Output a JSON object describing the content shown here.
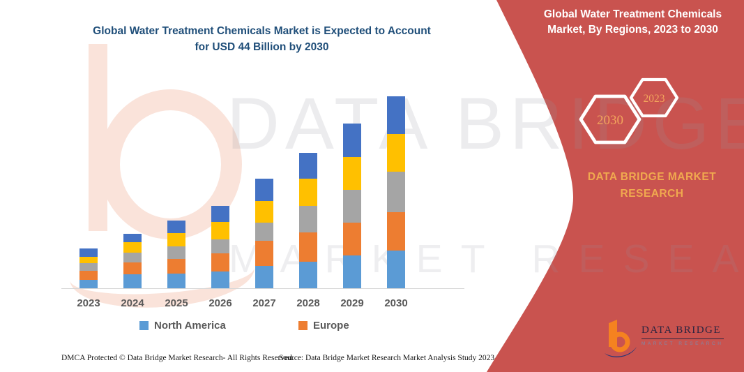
{
  "infographic": {
    "left_title": "Global Water Treatment Chemicals Market is Expected to Account for USD 44 Billion by 2030",
    "panel_title": "Global Water Treatment Chemicals Market, By Regions, 2023 to 2030",
    "hexagons": {
      "back_label": "2030",
      "front_label": "2023"
    },
    "brand_text": "DATA BRIDGE MARKET RESEARCH",
    "watermark_line1": "DATA BRIDGE",
    "watermark_line2": "MARKET RESEARCH",
    "logo": {
      "name": "DATA BRIDGE",
      "subtitle": "MARKET RESEARCH"
    },
    "footer": {
      "left": "DMCA Protected © Data Bridge Market Research-  All Rights Reserved.",
      "source": "Source: Data Bridge Market Research  Market Analysis Study 2023"
    },
    "colors": {
      "panel_red": "#C9534F",
      "gold": "#F0A94F",
      "title_navy": "#1F4E79",
      "axis_text": "#595959"
    }
  },
  "chart_data": {
    "type": "bar",
    "subtype": "stacked",
    "title": "Global Water Treatment Chemicals Market is Expected to Account for USD 44 Billion by 2030",
    "unit": "USD Billion",
    "categories": [
      "2023",
      "2024",
      "2025",
      "2026",
      "2027",
      "2028",
      "2029",
      "2030"
    ],
    "series": [
      {
        "name": "North America",
        "color": "#5B9BD5",
        "in_legend": true,
        "values": [
          2.0,
          3.2,
          3.3,
          3.9,
          5.2,
          6.1,
          7.5,
          8.6
        ]
      },
      {
        "name": "Europe",
        "color": "#ED7D31",
        "in_legend": true,
        "values": [
          2.1,
          2.8,
          3.4,
          4.2,
          5.8,
          6.8,
          7.5,
          8.9
        ]
      },
      {
        "name": "unlabeled-gray",
        "color": "#A5A5A5",
        "in_legend": false,
        "values": [
          1.7,
          2.3,
          2.9,
          3.2,
          4.2,
          6.1,
          7.5,
          9.3
        ]
      },
      {
        "name": "unlabeled-yellow",
        "color": "#FFC000",
        "in_legend": false,
        "values": [
          1.5,
          2.4,
          3.0,
          4.0,
          5.0,
          6.3,
          7.6,
          8.6
        ]
      },
      {
        "name": "unlabeled-darkblue",
        "color": "#4472C4",
        "in_legend": false,
        "values": [
          2.0,
          2.0,
          2.9,
          3.7,
          5.1,
          6.0,
          7.7,
          8.7
        ]
      }
    ],
    "totals": [
      9.3,
      12.7,
      15.5,
      19.0,
      25.3,
      31.3,
      37.8,
      44.1
    ],
    "legend": [
      {
        "label": "North America",
        "color": "#5B9BD5"
      },
      {
        "label": "Europe",
        "color": "#ED7D31"
      }
    ],
    "xlabel": "",
    "ylabel": "",
    "ylim": [
      0,
      45
    ],
    "gridlines": false,
    "legend_position": "bottom"
  }
}
